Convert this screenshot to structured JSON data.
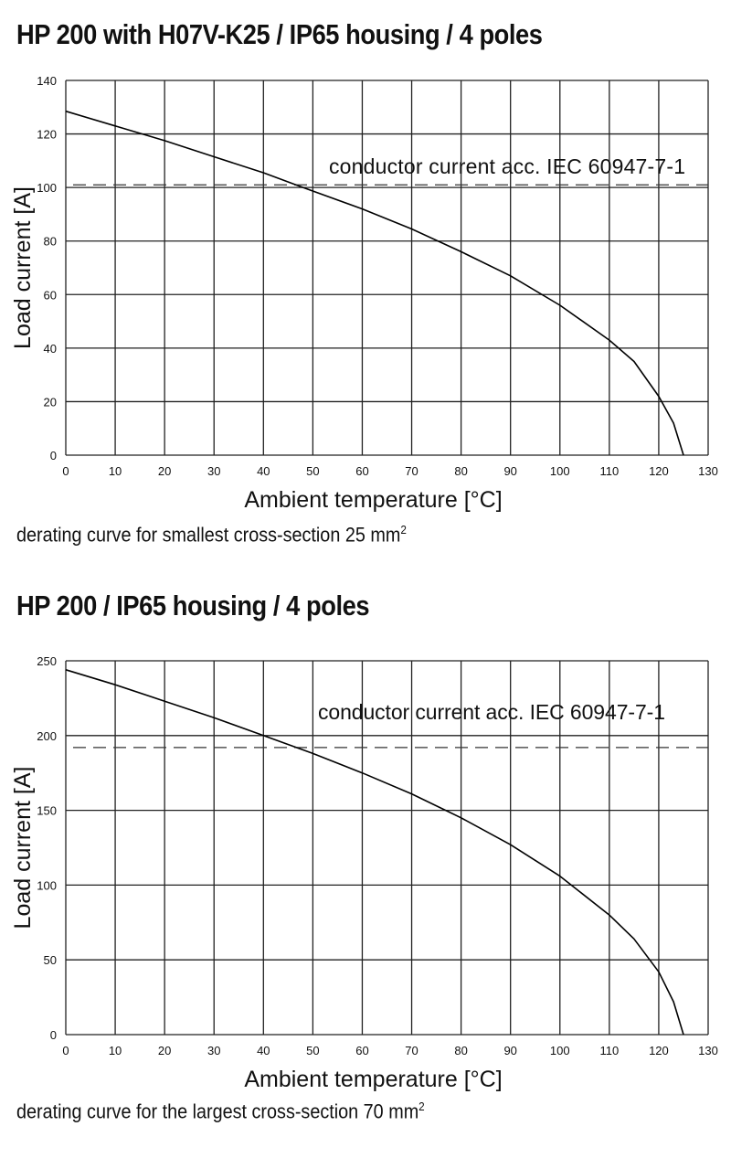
{
  "chart_data": [
    {
      "type": "line",
      "title": "HP 200 with H07V-K25 / IP65 housing / 4 poles",
      "xlabel": "Ambient temperature [°C]",
      "ylabel": "Load current [A]",
      "xlim": [
        0,
        130
      ],
      "ylim": [
        0,
        140
      ],
      "xticks": [
        0,
        10,
        20,
        30,
        40,
        50,
        60,
        70,
        80,
        90,
        100,
        110,
        120,
        130
      ],
      "yticks": [
        0,
        20,
        40,
        60,
        80,
        100,
        120,
        140
      ],
      "grid": true,
      "x": [
        0,
        10,
        20,
        30,
        40,
        48,
        60,
        70,
        80,
        90,
        100,
        110,
        115,
        120,
        123,
        125
      ],
      "y": [
        128.5,
        123,
        117.5,
        111.5,
        105.5,
        100,
        92,
        84.5,
        76,
        67,
        56,
        43,
        35,
        22,
        12,
        0
      ],
      "reference_line": {
        "value": 101,
        "style": "dashed",
        "label": "conductor current acc. IEC 60947-7-1"
      },
      "caption": "derating curve for smallest cross-section 25 mm",
      "caption_sup": "2"
    },
    {
      "type": "line",
      "title": "HP 200 / IP65 housing / 4 poles",
      "xlabel": "Ambient temperature [°C]",
      "ylabel": "Load current [A]",
      "xlim": [
        0,
        130
      ],
      "ylim": [
        0,
        250
      ],
      "xticks": [
        0,
        10,
        20,
        30,
        40,
        50,
        60,
        70,
        80,
        90,
        100,
        110,
        120,
        130
      ],
      "yticks": [
        0,
        50,
        100,
        150,
        200,
        250
      ],
      "grid": true,
      "x": [
        0,
        10,
        20,
        30,
        40,
        50,
        60,
        70,
        80,
        90,
        100,
        110,
        115,
        120,
        123,
        125
      ],
      "y": [
        244,
        234,
        223,
        212,
        200,
        188,
        175,
        161,
        145,
        127,
        106,
        80,
        64,
        42,
        22,
        0
      ],
      "reference_line": {
        "value": 192,
        "style": "dashed",
        "label": "conductor current acc. IEC 60947-7-1"
      },
      "caption": "derating curve for the largest cross-section 70 mm",
      "caption_sup": "2"
    }
  ]
}
